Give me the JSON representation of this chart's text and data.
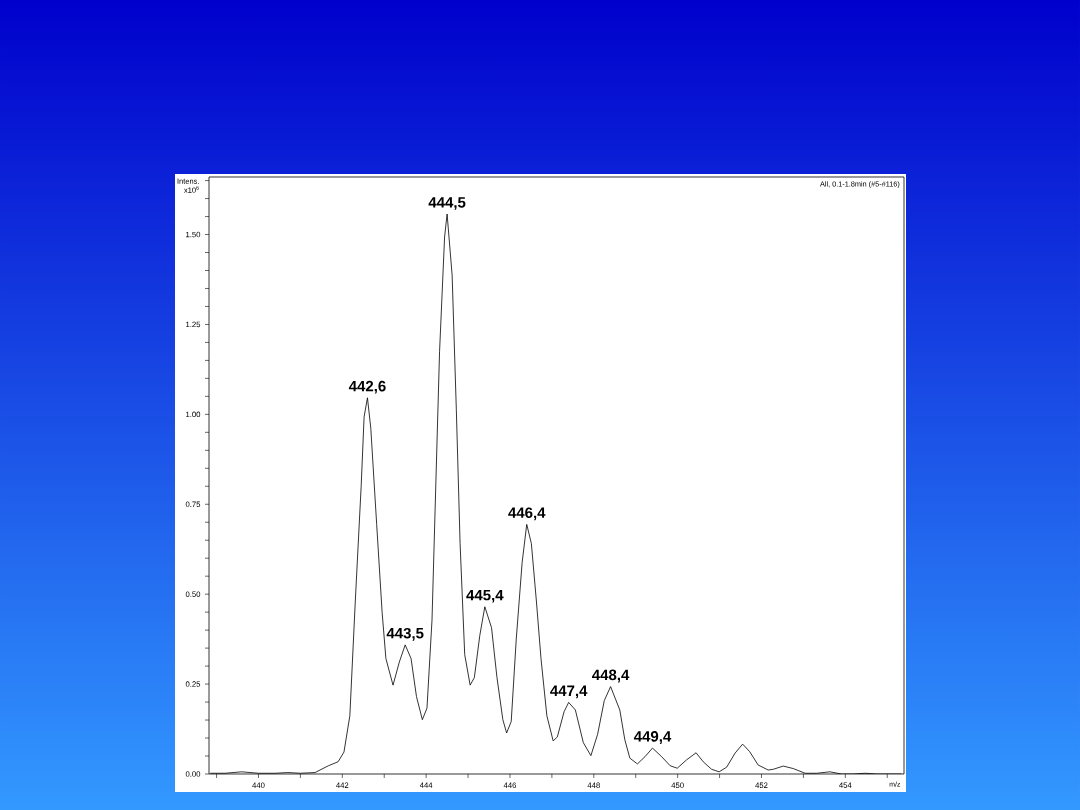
{
  "chart_data": {
    "type": "line",
    "xlabel": "m/z",
    "ylabel": "Intens. x10$^{6}$",
    "color": "#000000",
    "x": [
      438.85,
      439.2,
      439.6,
      440.0,
      440.4,
      440.7,
      441.0,
      441.35,
      441.67,
      441.9,
      442.04,
      442.18,
      442.31,
      442.45,
      442.52,
      442.6,
      442.68,
      442.82,
      442.95,
      443.04,
      443.21,
      443.36,
      443.5,
      443.64,
      443.77,
      443.91,
      444.02,
      444.14,
      444.23,
      444.32,
      444.44,
      444.5,
      444.62,
      444.72,
      444.81,
      444.92,
      445.05,
      445.15,
      445.28,
      445.4,
      445.56,
      445.69,
      445.83,
      445.92,
      446.03,
      446.15,
      446.29,
      446.4,
      446.51,
      446.63,
      446.74,
      446.88,
      447.03,
      447.13,
      447.29,
      447.4,
      447.56,
      447.75,
      447.93,
      448.09,
      448.25,
      448.4,
      448.62,
      448.74,
      448.86,
      449.04,
      449.22,
      449.4,
      449.62,
      449.82,
      449.99,
      450.21,
      450.44,
      450.61,
      450.81,
      450.99,
      451.17,
      451.37,
      451.55,
      451.72,
      451.92,
      452.16,
      452.28,
      452.52,
      452.76,
      453.04,
      453.32,
      453.63,
      453.91,
      454.19,
      454.47,
      454.75,
      455.34
    ],
    "values": [
      0.002,
      0.002,
      0.006,
      0.002,
      0.002,
      0.004,
      0.002,
      0.004,
      0.023,
      0.034,
      0.061,
      0.162,
      0.481,
      0.8,
      0.993,
      1.046,
      0.961,
      0.694,
      0.449,
      0.321,
      0.247,
      0.311,
      0.359,
      0.321,
      0.215,
      0.151,
      0.183,
      0.428,
      0.801,
      1.174,
      1.493,
      1.557,
      1.387,
      1.014,
      0.641,
      0.332,
      0.247,
      0.268,
      0.385,
      0.465,
      0.407,
      0.268,
      0.151,
      0.114,
      0.146,
      0.375,
      0.588,
      0.694,
      0.641,
      0.481,
      0.321,
      0.162,
      0.092,
      0.103,
      0.173,
      0.199,
      0.178,
      0.087,
      0.051,
      0.11,
      0.204,
      0.243,
      0.178,
      0.095,
      0.044,
      0.028,
      0.048,
      0.072,
      0.048,
      0.023,
      0.016,
      0.039,
      0.059,
      0.034,
      0.013,
      0.006,
      0.019,
      0.058,
      0.083,
      0.062,
      0.025,
      0.011,
      0.013,
      0.022,
      0.015,
      0.002,
      0.002,
      0.006,
      0.0,
      0.0,
      0.002,
      0.0,
      0.0
    ],
    "xlim": [
      438.82,
      455.4
    ],
    "ylim": [
      0,
      1.66
    ],
    "xticks": [
      {
        "value": 439,
        "label": null
      },
      440,
      {
        "value": 441,
        "label": null
      },
      442,
      {
        "value": 443,
        "label": null
      },
      444,
      {
        "value": 445,
        "label": null
      },
      446,
      {
        "value": 447,
        "label": null
      },
      448,
      {
        "value": 449,
        "label": null
      },
      450,
      {
        "value": 451,
        "label": null
      },
      452,
      {
        "value": 453,
        "label": null
      },
      454,
      {
        "value": 455,
        "label": null
      }
    ],
    "yticks": [
      {
        "value": 0,
        "label": "0.00"
      },
      {
        "value": 0.05,
        "label": null
      },
      {
        "value": 0.1,
        "label": null
      },
      {
        "value": 0.15,
        "label": null
      },
      {
        "value": 0.2,
        "label": null
      },
      {
        "value": 0.25,
        "label": "0.25"
      },
      {
        "value": 0.3,
        "label": null
      },
      {
        "value": 0.35,
        "label": null
      },
      {
        "value": 0.4,
        "label": null
      },
      {
        "value": 0.45,
        "label": null
      },
      {
        "value": 0.5,
        "label": "0.50"
      },
      {
        "value": 0.55,
        "label": null
      },
      {
        "value": 0.6,
        "label": null
      },
      {
        "value": 0.65,
        "label": null
      },
      {
        "value": 0.7,
        "label": null
      },
      {
        "value": 0.75,
        "label": "0.75"
      },
      {
        "value": 0.8,
        "label": null
      },
      {
        "value": 0.85,
        "label": null
      },
      {
        "value": 0.9,
        "label": null
      },
      {
        "value": 0.95,
        "label": null
      },
      {
        "value": 1,
        "label": "1.00"
      },
      {
        "value": 1.05,
        "label": null
      },
      {
        "value": 1.1,
        "label": null
      },
      {
        "value": 1.15,
        "label": null
      },
      {
        "value": 1.2,
        "label": null
      },
      {
        "value": 1.25,
        "label": "1.25"
      },
      {
        "value": 1.3,
        "label": null
      },
      {
        "value": 1.35,
        "label": null
      },
      {
        "value": 1.4,
        "label": null
      },
      {
        "value": 1.45,
        "label": null
      },
      {
        "value": 1.5,
        "label": "1.50"
      },
      {
        "value": 1.55,
        "label": null
      },
      {
        "value": 1.6,
        "label": null
      },
      {
        "value": 1.65,
        "label": null
      }
    ],
    "annotations": [
      "All, 0.1-1.8min (#5-#116)",
      {
        "text": "442,6",
        "x": 442.6,
        "y": 1.046
      },
      {
        "text": "443,5",
        "x": 443.5,
        "y": 0.359
      },
      {
        "text": "444,5",
        "x": 444.5,
        "y": 1.557
      },
      {
        "text": "445,4",
        "x": 445.4,
        "y": 0.465
      },
      {
        "text": "446,4",
        "x": 446.4,
        "y": 0.694
      },
      {
        "text": "447,4",
        "x": 447.4,
        "y": 0.199
      },
      {
        "text": "448,4",
        "x": 448.4,
        "y": 0.243
      },
      {
        "text": "449,4",
        "x": 449.4,
        "y": 0.072
      }
    ]
  }
}
